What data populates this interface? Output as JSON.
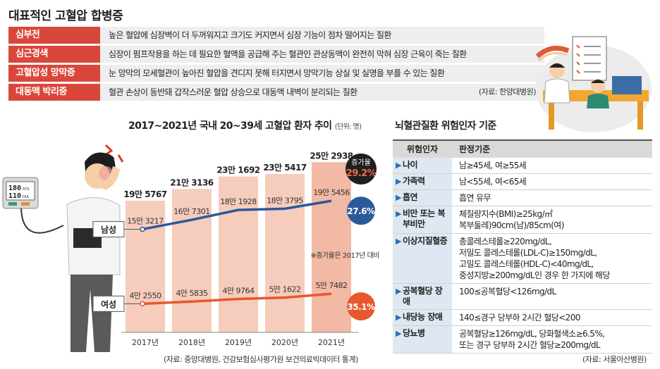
{
  "page_title": "대표적인 고혈압 합병증",
  "complications": [
    {
      "name": "심부전",
      "desc": "높은 혈압에 심장벽이 더 두꺼워지고 크기도 커지면서 심장 기능이 점차 떨어지는 질환"
    },
    {
      "name": "심근경색",
      "desc": "심장이 펌프작용을 하는 데 필요한 혈액을 공급해 주는 혈관인 관상동맥이 완전히 막혀 심장 근육이 죽는 질환"
    },
    {
      "name": "고혈압성 망막증",
      "desc": "눈 망막의 모세혈관이 높아진 혈압을 견디지 못해 터지면서 망막기능 상실 및 실명을 부를 수 있는 질환"
    },
    {
      "name": "대동맥 박리증",
      "desc": "혈관 손상이 동반돼 갑작스러운 혈압 상승으로 대동맥 내벽이 분리되는 질환"
    }
  ],
  "complications_source": "(자료: 한양대병원)",
  "chart_title": "2017~2021년 국내 20~39세 고혈압 환자 추이",
  "chart_unit": "(단위: 명)",
  "chart_source": "(자료: 중앙대병원, 건강보험심사평가원 보건의료빅데이터 통계)",
  "chart_data": {
    "type": "bar",
    "title": "2017~2021년 국내 20~39세 고혈압 환자 추이",
    "unit": "(단위: 명)",
    "categories": [
      "2017년",
      "2018년",
      "2019년",
      "2020년",
      "2021년"
    ],
    "totals": [
      195767,
      213136,
      231692,
      235417,
      252938
    ],
    "total_labels": [
      "19만 5767",
      "21만 3136",
      "23만 1692",
      "23만 5417",
      "25만 2938"
    ],
    "series": [
      {
        "name": "남성",
        "values": [
          153217,
          167301,
          181928,
          183795,
          195456
        ],
        "labels": [
          "15만 3217",
          "16만 7301",
          "18만 1928",
          "18만 3795",
          "19만 5456"
        ],
        "growth": "27.6%",
        "color": "#2a5a9b"
      },
      {
        "name": "여성",
        "values": [
          42550,
          45835,
          49764,
          51622,
          57482
        ],
        "labels": [
          "4만 2550",
          "4만 5835",
          "4만 9764",
          "5만 1622",
          "5만 7482"
        ],
        "growth": "35.1%",
        "color": "#e8572e"
      }
    ],
    "total_growth_label": "증가율",
    "total_growth": "29.2%",
    "growth_note": "※증가율은 2017년 대비",
    "ylim": [
      0,
      270000
    ]
  },
  "bp_monitor": {
    "sys_value": "180",
    "sys_label": "SYS",
    "dia_value": "110",
    "dia_label": "DIA"
  },
  "risk_title": "뇌혈관질환 위험인자 기준",
  "risk_header": {
    "factor": "위험인자",
    "criteria": "판정기준"
  },
  "risk_rows": [
    {
      "factor": "나이",
      "criteria": [
        "남≥45세, 여≥55세"
      ]
    },
    {
      "factor": "가족력",
      "criteria": [
        "남<55세, 여<65세"
      ]
    },
    {
      "factor": "흡연",
      "criteria": [
        "흡연 유무"
      ]
    },
    {
      "factor": "비만 또는 복부비만",
      "criteria": [
        "체질량지수(BMI)≥25kg/㎡",
        "복부둘레)90cm(남)/85cm(여)"
      ]
    },
    {
      "factor": "이상지질혈증",
      "criteria": [
        "총콜레스테롤≥220mg/dL,",
        "저밀도 콜레스테롤(LDL-C)≥150mg/dL,",
        "고밀도 콜레스테롤(HDL-C)<40mg/dL,",
        "중성지방≥200mg/dL인 경우 한 가지에 해당"
      ]
    },
    {
      "factor": "공복혈당 장애",
      "criteria": [
        "100≤공복혈당<126mg/dL"
      ]
    },
    {
      "factor": "내당능 장애",
      "criteria": [
        "140≤경구 당부하 2시간 혈당<200"
      ]
    },
    {
      "factor": "당뇨병",
      "criteria": [
        "공복혈당≥126mg/dL, 당화혈색소≥6.5%,",
        "또는 경구 당부하 2시간 혈당≥200mg/dL"
      ]
    }
  ],
  "risk_source": "(자료: 서울아산병원)"
}
